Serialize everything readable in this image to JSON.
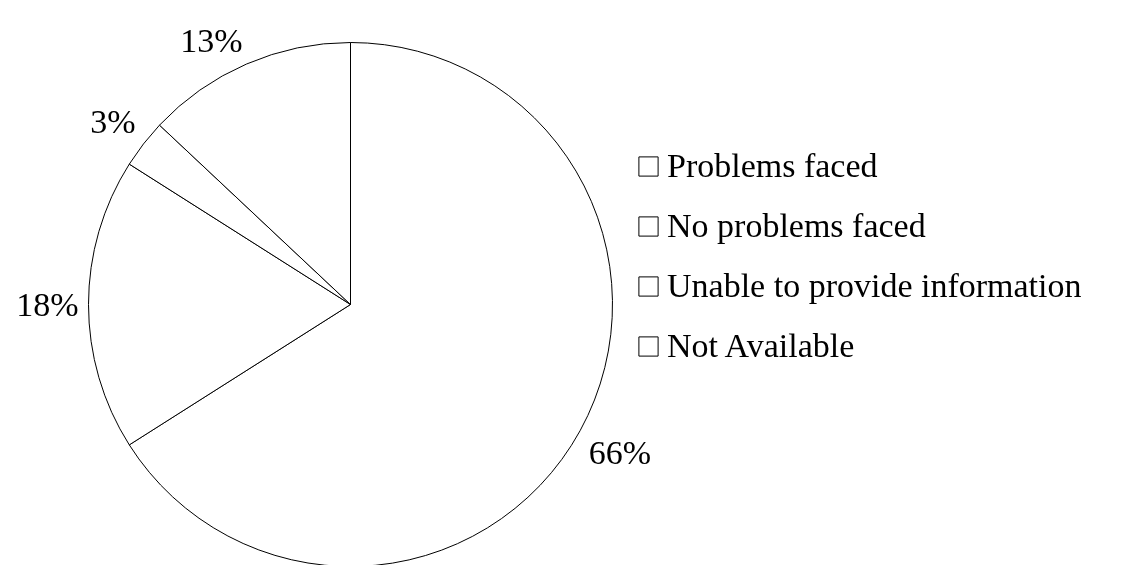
{
  "chart_data": {
    "type": "pie",
    "categories": [
      "Problems faced",
      "No problems faced",
      "Unable to provide information",
      "Not Available"
    ],
    "values": [
      66,
      18,
      3,
      13
    ],
    "colors": [
      "#ffffff",
      "#ffffff",
      "#ffffff",
      "#ffffff"
    ],
    "value_labels": [
      "66%",
      "18%",
      "3%",
      "13%"
    ],
    "legend": "right"
  }
}
